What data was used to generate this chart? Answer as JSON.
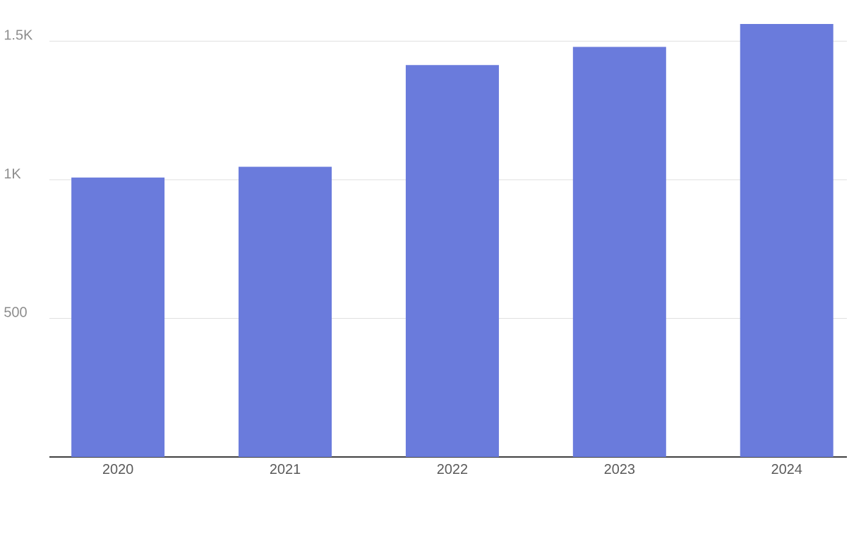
{
  "chart_data": {
    "type": "bar",
    "categories": [
      "2020",
      "2021",
      "2022",
      "2023",
      "2024"
    ],
    "values": [
      1008,
      1047,
      1414,
      1479,
      1562
    ],
    "color": "#6a7bdc",
    "ylim": [
      0,
      1562
    ],
    "yticks": [
      {
        "value": 500,
        "label": "500"
      },
      {
        "value": 1000,
        "label": "1K"
      },
      {
        "value": 1500,
        "label": "1.5K"
      }
    ],
    "grid": "y"
  }
}
